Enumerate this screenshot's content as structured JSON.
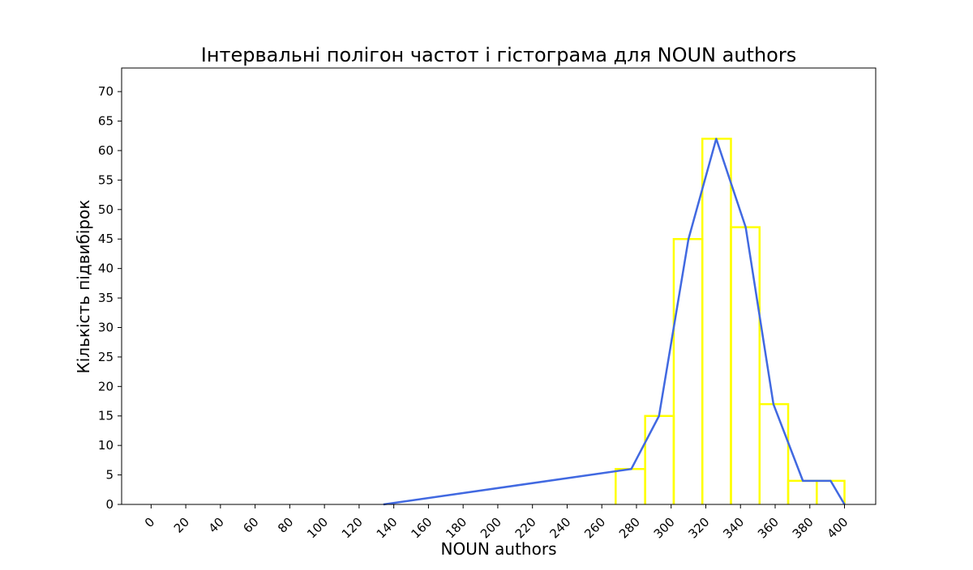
{
  "chart_data": {
    "type": "line",
    "title": "Інтервальні полігон частот і гістограма для NOUN authors",
    "xlabel": "NOUN authors",
    "ylabel": "Кількість підвибірок",
    "xlim": [
      -17,
      418
    ],
    "ylim": [
      0,
      74
    ],
    "xticks": [
      0,
      20,
      40,
      60,
      80,
      100,
      120,
      140,
      160,
      180,
      200,
      220,
      240,
      260,
      280,
      300,
      320,
      340,
      360,
      380,
      400
    ],
    "yticks": [
      0,
      5,
      10,
      15,
      20,
      25,
      30,
      35,
      40,
      45,
      50,
      55,
      60,
      65,
      70
    ],
    "grid": false,
    "histogram": {
      "color": "#ffff00",
      "bin_edges": [
        268,
        285,
        301.5,
        318,
        334.5,
        351,
        367.5,
        384,
        400
      ],
      "counts": [
        6,
        15,
        45,
        62,
        47,
        17,
        4,
        4
      ]
    },
    "polygon": {
      "color": "#4169e1",
      "x": [
        134,
        277,
        293,
        310,
        326,
        343,
        359,
        376,
        392,
        400
      ],
      "y": [
        0,
        6,
        15,
        45,
        62,
        47,
        17,
        4,
        4,
        0
      ]
    }
  }
}
